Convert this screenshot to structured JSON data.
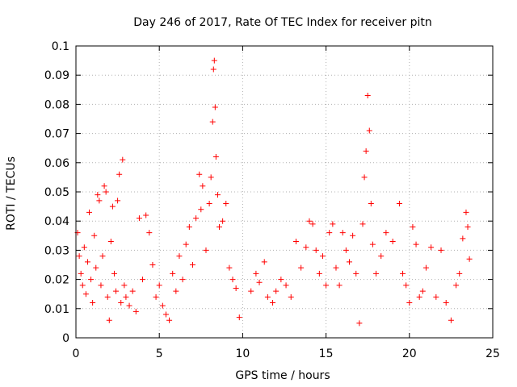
{
  "chart_data": {
    "type": "scatter",
    "title": "Day 246 of 2017, Rate Of TEC Index for receiver pitn",
    "xlabel": "GPS time / hours",
    "ylabel": "ROTI / TECUs",
    "xlim": [
      0,
      25
    ],
    "ylim": [
      0,
      0.1
    ],
    "xticks": [
      0,
      5,
      10,
      15,
      20,
      25
    ],
    "xtick_labels": [
      "0",
      "5",
      "10",
      "15",
      "20",
      "25"
    ],
    "yticks": [
      0,
      0.01,
      0.02,
      0.03,
      0.04,
      0.05,
      0.06,
      0.07,
      0.08,
      0.09,
      0.1
    ],
    "ytick_labels": [
      "0",
      "0.01",
      "0.02",
      "0.03",
      "0.04",
      "0.05",
      "0.06",
      "0.07",
      "0.08",
      "0.09",
      "0.1"
    ],
    "grid": true,
    "marker": "plus",
    "color": "#ff0000",
    "series": [
      {
        "name": "ROTI",
        "points": [
          [
            0.1,
            0.036
          ],
          [
            0.2,
            0.028
          ],
          [
            0.3,
            0.022
          ],
          [
            0.4,
            0.018
          ],
          [
            0.5,
            0.031
          ],
          [
            0.6,
            0.015
          ],
          [
            0.7,
            0.026
          ],
          [
            0.8,
            0.043
          ],
          [
            0.9,
            0.02
          ],
          [
            1.0,
            0.012
          ],
          [
            1.1,
            0.035
          ],
          [
            1.2,
            0.024
          ],
          [
            1.3,
            0.049
          ],
          [
            1.4,
            0.047
          ],
          [
            1.5,
            0.018
          ],
          [
            1.6,
            0.028
          ],
          [
            1.7,
            0.052
          ],
          [
            1.8,
            0.05
          ],
          [
            1.9,
            0.014
          ],
          [
            2.0,
            0.006
          ],
          [
            2.1,
            0.033
          ],
          [
            2.2,
            0.045
          ],
          [
            2.3,
            0.022
          ],
          [
            2.4,
            0.016
          ],
          [
            2.5,
            0.047
          ],
          [
            2.6,
            0.056
          ],
          [
            2.7,
            0.012
          ],
          [
            2.8,
            0.061
          ],
          [
            2.9,
            0.018
          ],
          [
            3.0,
            0.014
          ],
          [
            3.2,
            0.011
          ],
          [
            3.4,
            0.016
          ],
          [
            3.6,
            0.009
          ],
          [
            3.8,
            0.041
          ],
          [
            4.0,
            0.02
          ],
          [
            4.2,
            0.042
          ],
          [
            4.4,
            0.036
          ],
          [
            4.6,
            0.025
          ],
          [
            4.8,
            0.014
          ],
          [
            5.0,
            0.018
          ],
          [
            5.2,
            0.011
          ],
          [
            5.4,
            0.008
          ],
          [
            5.6,
            0.006
          ],
          [
            5.8,
            0.022
          ],
          [
            6.0,
            0.016
          ],
          [
            6.2,
            0.028
          ],
          [
            6.4,
            0.02
          ],
          [
            6.6,
            0.032
          ],
          [
            6.8,
            0.038
          ],
          [
            7.0,
            0.025
          ],
          [
            7.2,
            0.041
          ],
          [
            7.4,
            0.056
          ],
          [
            7.5,
            0.044
          ],
          [
            7.6,
            0.052
          ],
          [
            7.8,
            0.03
          ],
          [
            8.0,
            0.046
          ],
          [
            8.1,
            0.055
          ],
          [
            8.2,
            0.074
          ],
          [
            8.25,
            0.092
          ],
          [
            8.3,
            0.095
          ],
          [
            8.35,
            0.079
          ],
          [
            8.4,
            0.062
          ],
          [
            8.5,
            0.049
          ],
          [
            8.6,
            0.038
          ],
          [
            8.8,
            0.04
          ],
          [
            9.0,
            0.046
          ],
          [
            9.2,
            0.024
          ],
          [
            9.4,
            0.02
          ],
          [
            9.6,
            0.017
          ],
          [
            9.8,
            0.007
          ],
          [
            10.5,
            0.016
          ],
          [
            10.8,
            0.022
          ],
          [
            11.0,
            0.019
          ],
          [
            11.3,
            0.026
          ],
          [
            11.5,
            0.014
          ],
          [
            11.8,
            0.012
          ],
          [
            12.0,
            0.016
          ],
          [
            12.3,
            0.02
          ],
          [
            12.6,
            0.018
          ],
          [
            12.9,
            0.014
          ],
          [
            13.2,
            0.033
          ],
          [
            13.5,
            0.024
          ],
          [
            13.8,
            0.031
          ],
          [
            14.0,
            0.04
          ],
          [
            14.2,
            0.039
          ],
          [
            14.4,
            0.03
          ],
          [
            14.6,
            0.022
          ],
          [
            14.8,
            0.028
          ],
          [
            15.0,
            0.018
          ],
          [
            15.2,
            0.036
          ],
          [
            15.4,
            0.039
          ],
          [
            15.6,
            0.024
          ],
          [
            15.8,
            0.018
          ],
          [
            16.0,
            0.036
          ],
          [
            16.2,
            0.03
          ],
          [
            16.4,
            0.026
          ],
          [
            16.6,
            0.035
          ],
          [
            16.8,
            0.022
          ],
          [
            17.0,
            0.005
          ],
          [
            17.2,
            0.039
          ],
          [
            17.3,
            0.055
          ],
          [
            17.4,
            0.064
          ],
          [
            17.5,
            0.083
          ],
          [
            17.6,
            0.071
          ],
          [
            17.7,
            0.046
          ],
          [
            17.8,
            0.032
          ],
          [
            18.0,
            0.022
          ],
          [
            18.3,
            0.028
          ],
          [
            18.6,
            0.036
          ],
          [
            19.0,
            0.033
          ],
          [
            19.4,
            0.046
          ],
          [
            19.6,
            0.022
          ],
          [
            19.8,
            0.018
          ],
          [
            20.0,
            0.012
          ],
          [
            20.2,
            0.038
          ],
          [
            20.4,
            0.032
          ],
          [
            20.6,
            0.014
          ],
          [
            20.8,
            0.016
          ],
          [
            21.0,
            0.024
          ],
          [
            21.3,
            0.031
          ],
          [
            21.6,
            0.014
          ],
          [
            21.9,
            0.03
          ],
          [
            22.2,
            0.012
          ],
          [
            22.5,
            0.006
          ],
          [
            22.8,
            0.018
          ],
          [
            23.0,
            0.022
          ],
          [
            23.2,
            0.034
          ],
          [
            23.4,
            0.043
          ],
          [
            23.5,
            0.038
          ],
          [
            23.6,
            0.027
          ]
        ]
      }
    ]
  }
}
